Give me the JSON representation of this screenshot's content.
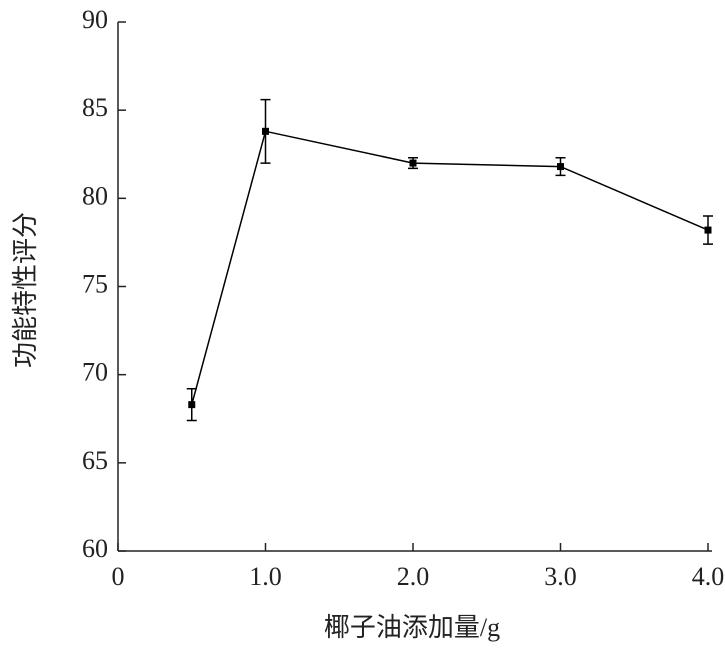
{
  "chart_data": {
    "type": "line",
    "x_label": "椰子油添加量/g",
    "y_label": "功能特性评分",
    "x": [
      0.5,
      1.0,
      2.0,
      3.0,
      4.0
    ],
    "series": [
      {
        "color": "#000000",
        "values": [
          68.3,
          83.8,
          82.0,
          81.8,
          78.2
        ],
        "errors": [
          0.9,
          1.8,
          0.3,
          0.5,
          0.8
        ]
      }
    ],
    "xlim": [
      0,
      4.0
    ],
    "xticks": [
      0,
      {
        "value": 1.0,
        "label": "1.0"
      },
      {
        "value": 2.0,
        "label": "2.0"
      },
      {
        "value": 3.0,
        "label": "3.0"
      },
      {
        "value": 4.0,
        "label": "4.0"
      }
    ],
    "ylim": [
      60,
      90
    ],
    "yticks": [
      60,
      65,
      70,
      75,
      80,
      85,
      90
    ],
    "grid": false
  }
}
